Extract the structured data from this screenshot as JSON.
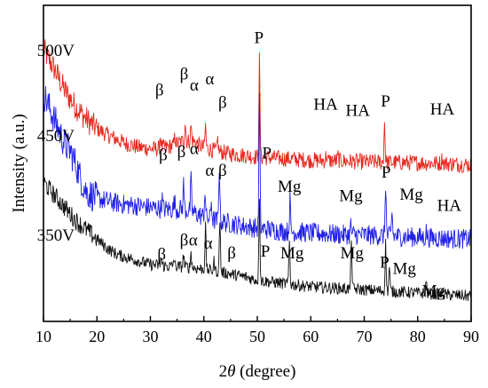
{
  "chart_data": {
    "type": "line",
    "xlabel_prefix": "2",
    "xlabel_symbol": "θ",
    "xlabel_suffix": " (degree)",
    "ylabel": "Intensity (a.u.)",
    "xlim": [
      10,
      90
    ],
    "ylim": [
      0,
      100
    ],
    "xticks": [
      10,
      20,
      30,
      40,
      50,
      60,
      70,
      80,
      90
    ],
    "grid": false,
    "series": [
      {
        "name": "500V",
        "color": "#e8281e",
        "base_points": [
          [
            10,
            86
          ],
          [
            12,
            80
          ],
          [
            14,
            73
          ],
          [
            16,
            68
          ],
          [
            18,
            64
          ],
          [
            20,
            61
          ],
          [
            22,
            59
          ],
          [
            25,
            56.5
          ],
          [
            28,
            55
          ],
          [
            31,
            54.5
          ],
          [
            34,
            55.5
          ],
          [
            36,
            57
          ],
          [
            38,
            57
          ],
          [
            40,
            55
          ],
          [
            42,
            54
          ],
          [
            45,
            53
          ],
          [
            48,
            52.5
          ],
          [
            50,
            52
          ],
          [
            55,
            51.5
          ],
          [
            60,
            51
          ],
          [
            65,
            50.8
          ],
          [
            70,
            50.5
          ],
          [
            75,
            50.3
          ],
          [
            80,
            50.2
          ],
          [
            85,
            50
          ],
          [
            90,
            49.5
          ]
        ],
        "noise": 2.6,
        "peaks": [
          [
            31.9,
            4
          ],
          [
            34.6,
            3
          ],
          [
            36.5,
            6
          ],
          [
            37.6,
            5
          ],
          [
            40.3,
            7
          ],
          [
            42.6,
            4
          ],
          [
            50.4,
            31
          ],
          [
            62.9,
            2
          ],
          [
            65.1,
            1.5
          ],
          [
            73.8,
            13
          ],
          [
            84.6,
            2
          ]
        ]
      },
      {
        "name": "450V",
        "color": "#2020e8",
        "base_points": [
          [
            10,
            72
          ],
          [
            12,
            64
          ],
          [
            14,
            56
          ],
          [
            15,
            54
          ],
          [
            16,
            50
          ],
          [
            17,
            45
          ],
          [
            18,
            41
          ],
          [
            20,
            39
          ],
          [
            22,
            38
          ],
          [
            25,
            37
          ],
          [
            28,
            36.5
          ],
          [
            30,
            36
          ],
          [
            33,
            35.5
          ],
          [
            36,
            35.5
          ],
          [
            38,
            34.5
          ],
          [
            40,
            33
          ],
          [
            42,
            32
          ],
          [
            45,
            31
          ],
          [
            48,
            30
          ],
          [
            50,
            29.5
          ],
          [
            55,
            28.5
          ],
          [
            60,
            28
          ],
          [
            65,
            27.5
          ],
          [
            70,
            27.3
          ],
          [
            75,
            27
          ],
          [
            80,
            26.6
          ],
          [
            85,
            26.3
          ],
          [
            90,
            26
          ]
        ],
        "noise": 3.2,
        "peaks": [
          [
            32.2,
            3
          ],
          [
            34.5,
            3
          ],
          [
            36.2,
            8
          ],
          [
            37.6,
            10
          ],
          [
            40.2,
            9
          ],
          [
            41.4,
            6
          ],
          [
            42.9,
            18
          ],
          [
            50.4,
            42
          ],
          [
            56.1,
            10
          ],
          [
            67.5,
            3
          ],
          [
            74.0,
            17
          ],
          [
            75.2,
            8
          ],
          [
            81.6,
            2
          ]
        ]
      },
      {
        "name": "350V",
        "color": "#111111",
        "base_points": [
          [
            10,
            44
          ],
          [
            12,
            40
          ],
          [
            14,
            36
          ],
          [
            16,
            32
          ],
          [
            18,
            29
          ],
          [
            20,
            26
          ],
          [
            22,
            23
          ],
          [
            24,
            21
          ],
          [
            26,
            20
          ],
          [
            28,
            19
          ],
          [
            30,
            18
          ],
          [
            33,
            17.5
          ],
          [
            36,
            17.3
          ],
          [
            38,
            17
          ],
          [
            40,
            16.5
          ],
          [
            42,
            16
          ],
          [
            45,
            15
          ],
          [
            48,
            14
          ],
          [
            50,
            13
          ],
          [
            55,
            12
          ],
          [
            60,
            11
          ],
          [
            65,
            10.5
          ],
          [
            70,
            10
          ],
          [
            75,
            9.5
          ],
          [
            80,
            9
          ],
          [
            85,
            8.5
          ],
          [
            90,
            8
          ]
        ],
        "noise": 1.9,
        "peaks": [
          [
            32.0,
            2.5
          ],
          [
            34.4,
            2.5
          ],
          [
            36.2,
            4
          ],
          [
            37.6,
            5
          ],
          [
            40.3,
            14
          ],
          [
            41.9,
            3
          ],
          [
            43.0,
            17
          ],
          [
            50.4,
            27
          ],
          [
            56.0,
            14
          ],
          [
            67.6,
            17
          ],
          [
            74.0,
            15
          ],
          [
            74.7,
            8
          ],
          [
            81.6,
            4
          ]
        ]
      }
    ],
    "labels": [
      {
        "text": "500V",
        "x": 12.3,
        "y": 84
      },
      {
        "text": "β",
        "x": 31.7,
        "y": 71.5
      },
      {
        "text": "β",
        "x": 36.3,
        "y": 76.5
      },
      {
        "text": "α",
        "x": 38.2,
        "y": 73
      },
      {
        "text": "α",
        "x": 41.1,
        "y": 75
      },
      {
        "text": "β",
        "x": 43.5,
        "y": 67.5
      },
      {
        "text": "P",
        "x": 50.3,
        "y": 88
      },
      {
        "text": "HA",
        "x": 62.8,
        "y": 67
      },
      {
        "text": "HA",
        "x": 68.8,
        "y": 65
      },
      {
        "text": "P",
        "x": 74.0,
        "y": 68
      },
      {
        "text": "HA",
        "x": 84.6,
        "y": 65.5
      },
      {
        "text": "450V",
        "x": 12.3,
        "y": 57
      },
      {
        "text": "β",
        "x": 32.4,
        "y": 51
      },
      {
        "text": "β",
        "x": 35.8,
        "y": 52
      },
      {
        "text": "α",
        "x": 38.2,
        "y": 53
      },
      {
        "text": "α",
        "x": 41.1,
        "y": 46
      },
      {
        "text": "β",
        "x": 43.5,
        "y": 46
      },
      {
        "text": "P",
        "x": 51.8,
        "y": 51.5
      },
      {
        "text": "Mg",
        "x": 56.0,
        "y": 41
      },
      {
        "text": "Mg",
        "x": 67.5,
        "y": 38
      },
      {
        "text": "P",
        "x": 74.1,
        "y": 45.5
      },
      {
        "text": "Mg",
        "x": 78.8,
        "y": 38.5
      },
      {
        "text": "HA",
        "x": 85.9,
        "y": 35
      },
      {
        "text": "350V",
        "x": 12.3,
        "y": 25.5
      },
      {
        "text": "β",
        "x": 32.1,
        "y": 19.5
      },
      {
        "text": "β",
        "x": 36.3,
        "y": 24
      },
      {
        "text": "α",
        "x": 38.0,
        "y": 24
      },
      {
        "text": "α",
        "x": 40.8,
        "y": 23
      },
      {
        "text": "β",
        "x": 45.2,
        "y": 20
      },
      {
        "text": "P",
        "x": 51.5,
        "y": 20.5
      },
      {
        "text": "Mg",
        "x": 56.5,
        "y": 20
      },
      {
        "text": "Mg",
        "x": 67.7,
        "y": 20
      },
      {
        "text": "P",
        "x": 73.8,
        "y": 17
      },
      {
        "text": "Mg",
        "x": 77.5,
        "y": 15
      },
      {
        "text": "Mg",
        "x": 83.0,
        "y": 8
      }
    ]
  }
}
